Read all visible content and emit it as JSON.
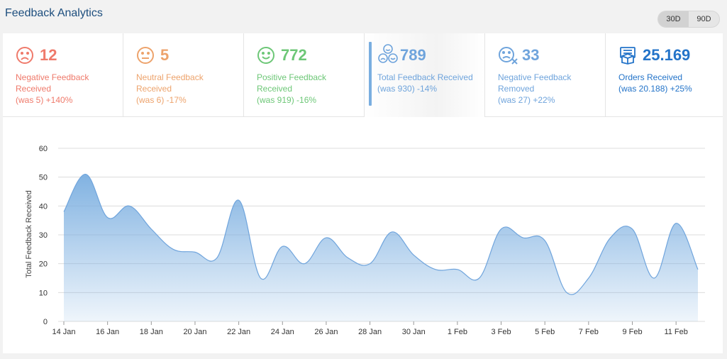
{
  "header": {
    "title": "Feedback Analytics"
  },
  "range_toggle": [
    {
      "label": "30D",
      "active": true
    },
    {
      "label": "90D",
      "active": false
    }
  ],
  "cards": [
    {
      "id": "negative",
      "icon": "sad-face-icon",
      "value": "12",
      "label_line1": "Negative Feedback",
      "label_line2": "Received",
      "change": "(was 5) +140%",
      "color": "#ef7a6b"
    },
    {
      "id": "neutral",
      "icon": "neutral-face-icon",
      "value": "5",
      "label_line1": "Neutral Feedback",
      "label_line2": "Received",
      "change": "(was 6) -17%",
      "color": "#eda36c"
    },
    {
      "id": "positive",
      "icon": "happy-face-icon",
      "value": "772",
      "label_line1": "Positive Feedback",
      "label_line2": "Received",
      "change": "(was 919) -16%",
      "color": "#6dc777"
    },
    {
      "id": "total",
      "icon": "faces-group-icon",
      "value": "789",
      "label_line1": "Total Feedback Received",
      "label_line2": "",
      "change": "(was 930) -14%",
      "color": "#6fa4dc",
      "active": true
    },
    {
      "id": "removed",
      "icon": "sad-face-x-icon",
      "value": "33",
      "label_line1": "Negative Feedback",
      "label_line2": "Removed",
      "change": "(was 27) +22%",
      "color": "#6fa4dc"
    },
    {
      "id": "orders",
      "icon": "package-icon",
      "value": "25.169",
      "label_line1": "Orders Received",
      "label_line2": "",
      "change": "(was 20.188) +25%",
      "color": "#2474c9"
    }
  ],
  "chart_data": {
    "type": "area",
    "ylabel": "Total Feedback Received",
    "xlabel": "",
    "ylim": [
      0,
      60
    ],
    "yticks": [
      0,
      10,
      20,
      30,
      40,
      50,
      60
    ],
    "x_tick_labels": [
      "14 Jan",
      "16 Jan",
      "18 Jan",
      "20 Jan",
      "22 Jan",
      "24 Jan",
      "26 Jan",
      "28 Jan",
      "30 Jan",
      "1 Feb",
      "3 Feb",
      "5 Feb",
      "7 Feb",
      "9 Feb",
      "11 Feb"
    ],
    "x": [
      "14 Jan",
      "15 Jan",
      "16 Jan",
      "17 Jan",
      "18 Jan",
      "19 Jan",
      "20 Jan",
      "21 Jan",
      "22 Jan",
      "23 Jan",
      "24 Jan",
      "25 Jan",
      "26 Jan",
      "27 Jan",
      "28 Jan",
      "29 Jan",
      "30 Jan",
      "31 Jan",
      "1 Feb",
      "2 Feb",
      "3 Feb",
      "4 Feb",
      "5 Feb",
      "6 Feb",
      "7 Feb",
      "8 Feb",
      "9 Feb",
      "10 Feb",
      "11 Feb",
      "12 Feb"
    ],
    "values": [
      38,
      51,
      36,
      40,
      32,
      25,
      24,
      22,
      42,
      15,
      26,
      20,
      29,
      22,
      20,
      31,
      23,
      18,
      18,
      15,
      32,
      29,
      28,
      10,
      15,
      29,
      32,
      15,
      34,
      18
    ],
    "grid": true,
    "color": "#7aaee0"
  }
}
